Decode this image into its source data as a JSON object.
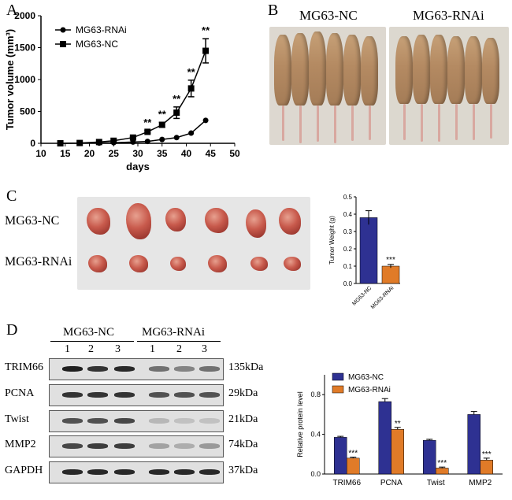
{
  "panels": {
    "a": "A",
    "b": "B",
    "c": "C",
    "d": "D"
  },
  "b_photo": {
    "left_label": "MG63-NC",
    "right_label": "MG63-RNAi"
  },
  "c_photo": {
    "row1": "MG63-NC",
    "row2": "MG63-RNAi"
  },
  "d_blot": {
    "group1": "MG63-NC",
    "group2": "MG63-RNAi",
    "lanes": [
      "1",
      "2",
      "3",
      "1",
      "2",
      "3"
    ],
    "proteins": [
      "TRIM66",
      "PCNA",
      "Twist",
      "MMP2",
      "GAPDH"
    ],
    "sizes": [
      "135kDa",
      "29kDa",
      "21kDa",
      "74kDa",
      "37kDa"
    ]
  },
  "chart_data": [
    {
      "id": "tumor-volume",
      "type": "line",
      "xlabel": "days",
      "ylabel": "Tumor volume (mm³)",
      "xlim": [
        10,
        50
      ],
      "ylim": [
        0,
        2000
      ],
      "xticks": [
        "10",
        "15",
        "20",
        "25",
        "30",
        "35",
        "40",
        "45",
        "50"
      ],
      "yticks": [
        "0",
        "500",
        "1000",
        "1500",
        "2000"
      ],
      "legend": "top-left",
      "series": [
        {
          "name": "MG63-RNAi",
          "marker": "circle",
          "x": [
            14,
            18,
            22,
            25,
            29,
            32,
            35,
            38,
            41,
            44
          ],
          "y": [
            0,
            2,
            5,
            10,
            20,
            30,
            60,
            90,
            160,
            360
          ],
          "err": [
            0,
            0,
            0,
            0,
            0,
            0,
            0,
            0,
            0,
            0
          ]
        },
        {
          "name": "MG63-NC",
          "marker": "square",
          "x": [
            14,
            18,
            22,
            25,
            29,
            32,
            35,
            38,
            41,
            44
          ],
          "y": [
            0,
            5,
            20,
            40,
            90,
            180,
            290,
            480,
            860,
            1450
          ],
          "err": [
            0,
            0,
            0,
            0,
            10,
            20,
            40,
            90,
            130,
            190
          ]
        }
      ],
      "annotations": [
        "**",
        "**",
        "**",
        "**",
        "**"
      ],
      "annotation_x": [
        32,
        35,
        38,
        41,
        44
      ]
    },
    {
      "id": "tumor-weight",
      "type": "bar",
      "ylabel": "Tumor Weight (g)",
      "categories": [
        "MG63-NC",
        "MG63-RNAi"
      ],
      "values": [
        0.38,
        0.1
      ],
      "err": [
        0.04,
        0.01
      ],
      "ylim": [
        0,
        0.5
      ],
      "yticks": [
        "0.0",
        "0.1",
        "0.2",
        "0.3",
        "0.4",
        "0.5"
      ],
      "colors": [
        "#2e3192",
        "#e07b28"
      ],
      "annotations": [
        "",
        "***"
      ]
    },
    {
      "id": "relative-protein",
      "type": "bar",
      "ylabel": "Relative protein level",
      "categories": [
        "TRIM66",
        "PCNA",
        "Twist",
        "MMP2"
      ],
      "series": [
        {
          "name": "MG63-NC",
          "values": [
            0.37,
            0.73,
            0.34,
            0.6
          ],
          "err": [
            0.01,
            0.03,
            0.01,
            0.03
          ],
          "color": "#2e3192"
        },
        {
          "name": "MG63-RNAi",
          "values": [
            0.16,
            0.45,
            0.06,
            0.14
          ],
          "err": [
            0.01,
            0.02,
            0.01,
            0.02
          ],
          "color": "#e07b28"
        }
      ],
      "ylim": [
        0,
        1.0
      ],
      "yticks": [
        "0.0",
        "0.4",
        "0.8"
      ],
      "legend": "top-left",
      "annotations": [
        "***",
        "**",
        "***",
        "***"
      ]
    }
  ]
}
